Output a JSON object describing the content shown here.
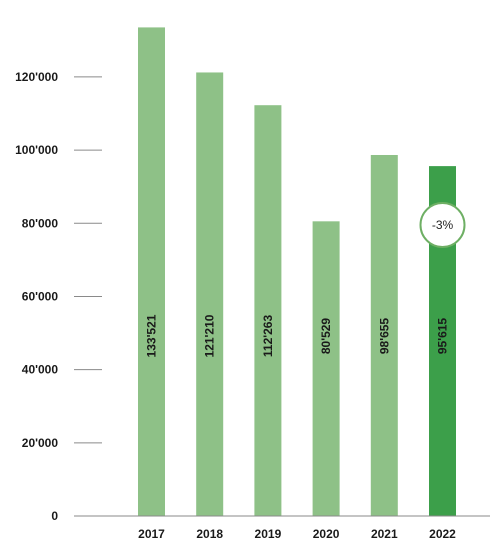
{
  "chart_data": {
    "type": "bar",
    "categories": [
      "2017",
      "2018",
      "2019",
      "2020",
      "2021",
      "2022"
    ],
    "values": [
      133521,
      121210,
      112263,
      80529,
      98655,
      95615
    ],
    "value_labels": [
      "133'521",
      "121'210",
      "112'263",
      "80'529",
      "98'655",
      "95'615"
    ],
    "ylim": [
      0,
      135000
    ],
    "yticks": [
      0,
      20000,
      40000,
      60000,
      80000,
      100000,
      120000
    ],
    "ytick_labels": [
      "0",
      "20'000",
      "40'000",
      "60'000",
      "80'000",
      "100'000",
      "120'000"
    ],
    "title": "",
    "xlabel": "",
    "ylabel": "",
    "grid": false,
    "colors": {
      "bar": "#8ec187",
      "highlight_bar": "#3c9f4a",
      "tick": "#8a8a8a",
      "badge_border": "#6eaf64"
    },
    "highlight_index": 5,
    "annotation": {
      "text": "-3%",
      "category": "2022"
    }
  }
}
